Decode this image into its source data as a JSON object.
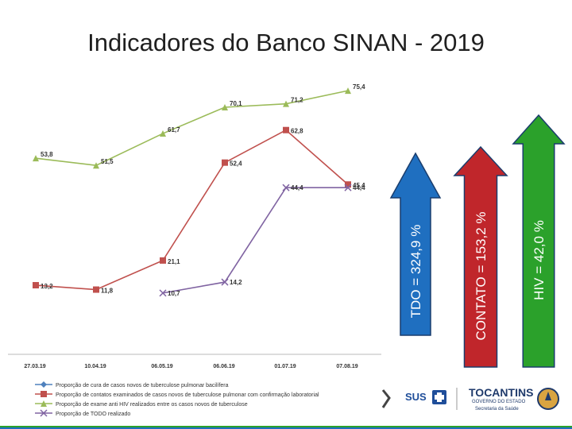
{
  "title": "Indicadores do Banco SINAN - 2019",
  "arrows": [
    {
      "label": "TDO = 324,9 %",
      "color": "#1f6fc0"
    },
    {
      "label": "CONTATO = 153,2 %",
      "color": "#c0262b"
    },
    {
      "label": "HIV = 42,0 %",
      "color": "#2ba12b"
    }
  ],
  "chart_data": {
    "type": "line",
    "categories": [
      "27.03.19",
      "10.04.19",
      "06.05.19",
      "06.06.19",
      "01.07.19",
      "07.08.19"
    ],
    "ylim": [
      0,
      80
    ],
    "grid": false,
    "legend_position": "bottom",
    "series": [
      {
        "name": "Proporção de cura de casos novos de tuberculose pulmonar bacilífera",
        "color": "#4f81bd",
        "marker": "diamond",
        "values": [
          null,
          null,
          null,
          null,
          null,
          null
        ]
      },
      {
        "name": "Proporção de contatos examinados de casos novos de tuberculose pulmonar com confirmação laboratorial",
        "color": "#c0504d",
        "marker": "square",
        "values": [
          13.2,
          11.8,
          21.1,
          52.4,
          62.8,
          45.4
        ],
        "labels": [
          "13,2",
          "11,8",
          "21,1",
          "52,4",
          "62,8",
          "45,4"
        ]
      },
      {
        "name": "Proporção de exame anti HIV realizados entre os casos novos de tuberculose",
        "color": "#9bbb59",
        "marker": "triangle",
        "values": [
          53.8,
          51.5,
          61.7,
          70.1,
          71.2,
          75.4
        ],
        "labels": [
          "53,8",
          "51,5",
          "61,7",
          "70,1",
          "71,2",
          "75,4"
        ]
      },
      {
        "name": "Proporção de TODO realizado",
        "color": "#8064a2",
        "marker": "x",
        "values": [
          null,
          null,
          10.7,
          14.2,
          44.4,
          44.4
        ],
        "labels": [
          "",
          "",
          "10,7",
          "14,2",
          "44,4",
          "44,4"
        ]
      }
    ]
  },
  "logos": {
    "sus": "SUS",
    "tocantins": "TOCANTINS",
    "governo": "GOVERNO DO ESTADO",
    "secretaria": "Secretaria da Saúde"
  }
}
